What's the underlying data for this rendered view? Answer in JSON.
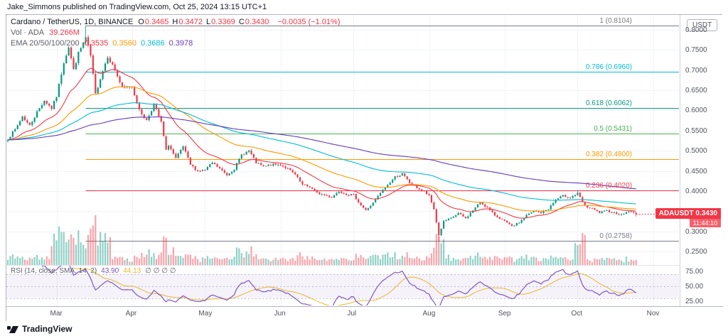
{
  "attribution": "Jake_Simmons published on TradingView.com, Oct 25, 2024 13:15 UTC+1",
  "header": {
    "symbol_title": "Cardano / TetherUS, 1D, BINANCE",
    "ohlc": [
      {
        "k": "O",
        "v": "0.3465"
      },
      {
        "k": "H",
        "v": "0.3472"
      },
      {
        "k": "L",
        "v": "0.3369"
      },
      {
        "k": "C",
        "v": "0.3430"
      }
    ],
    "change": "−0.0035 (−1.01%)",
    "volume_label": "Vol · ADA",
    "volume_value": "39.266M",
    "ema_label": "EMA 20/50/100/200",
    "ema_values": [
      {
        "value": "0.3535",
        "color": "#F23645"
      },
      {
        "value": "0.3560",
        "color": "#FF9800"
      },
      {
        "value": "0.3686",
        "color": "#00BCD4"
      },
      {
        "value": "0.3978",
        "color": "#673AB7"
      }
    ]
  },
  "rsi_legend": {
    "label": "RSI (14, close, SMA, 14, 2)",
    "rsi_value": "43.90",
    "ma_value": "44.13",
    "empties": "∅ ∅ ∅ ∅"
  },
  "price_scale": {
    "currency": "USDT",
    "ticks": [
      "0.8000",
      "0.7500",
      "0.7000",
      "0.6500",
      "0.6000",
      "0.5500",
      "0.5000",
      "0.4500",
      "0.4000",
      "0.3500",
      "0.3000",
      "0.2500"
    ]
  },
  "rsi_scale": [
    "75.00",
    "50.00",
    "25.00"
  ],
  "price_label": {
    "symbol": "ADAUSDT",
    "price": "0.3430",
    "countdown": "11:44:10",
    "level": 0.343,
    "color": "#F23645"
  },
  "fib_levels": [
    {
      "label": "1 (0.8104)",
      "price": 0.8104,
      "color": "#787B86"
    },
    {
      "label": "0.786 (0.6960)",
      "price": 0.696,
      "color": "#00BCD4"
    },
    {
      "label": "0.618 (0.6062)",
      "price": 0.6062,
      "color": "#089981"
    },
    {
      "label": "0.5 (0.5431)",
      "price": 0.5431,
      "color": "#4CAF50"
    },
    {
      "label": "0.382 (0.4800)",
      "price": 0.48,
      "color": "#FF9800"
    },
    {
      "label": "0.236 (0.4020)",
      "price": 0.402,
      "color": "#F23645"
    },
    {
      "label": "0 (0.2758)",
      "price": 0.2758,
      "color": "#787B86"
    }
  ],
  "time_axis": {
    "months": [
      {
        "label": "Mar",
        "day": 20
      },
      {
        "label": "Apr",
        "day": 51
      },
      {
        "label": "May",
        "day": 81
      },
      {
        "label": "Jun",
        "day": 112
      },
      {
        "label": "Jul",
        "day": 142
      },
      {
        "label": "Aug",
        "day": 173
      },
      {
        "label": "Sep",
        "day": 204
      },
      {
        "label": "Oct",
        "day": 234
      },
      {
        "label": "Nov",
        "day": 265
      }
    ]
  },
  "footer_logo": "TradingView",
  "chart_data": [
    {
      "type": "candlestick",
      "symbol": "ADAUSDT",
      "exchange": "BINANCE",
      "timeframe": "1D",
      "x_axis": "days from 2024-02-10",
      "visible_day_range": [
        0,
        275
      ],
      "price_range_shown": [
        0.25,
        0.8
      ],
      "up_color": "#089981",
      "down_color": "#F23645",
      "ema_periods": [
        20,
        50,
        100,
        200
      ],
      "anchors_close": [
        [
          0,
          0.53
        ],
        [
          3,
          0.552
        ],
        [
          6,
          0.585
        ],
        [
          9,
          0.562
        ],
        [
          12,
          0.596
        ],
        [
          15,
          0.625
        ],
        [
          18,
          0.605
        ],
        [
          20,
          0.635
        ],
        [
          23,
          0.72
        ],
        [
          25,
          0.758
        ],
        [
          27,
          0.7
        ],
        [
          29,
          0.742
        ],
        [
          32,
          0.78
        ],
        [
          34,
          0.735
        ],
        [
          36,
          0.64
        ],
        [
          38,
          0.68
        ],
        [
          41,
          0.735
        ],
        [
          44,
          0.7
        ],
        [
          47,
          0.655
        ],
        [
          51,
          0.66
        ],
        [
          54,
          0.6
        ],
        [
          57,
          0.575
        ],
        [
          60,
          0.615
        ],
        [
          63,
          0.57
        ],
        [
          65,
          0.5
        ],
        [
          66,
          0.515
        ],
        [
          69,
          0.48
        ],
        [
          72,
          0.51
        ],
        [
          75,
          0.465
        ],
        [
          78,
          0.45
        ],
        [
          81,
          0.452
        ],
        [
          84,
          0.47
        ],
        [
          87,
          0.455
        ],
        [
          90,
          0.44
        ],
        [
          93,
          0.455
        ],
        [
          96,
          0.49
        ],
        [
          99,
          0.5
        ],
        [
          102,
          0.47
        ],
        [
          105,
          0.46
        ],
        [
          108,
          0.465
        ],
        [
          112,
          0.465
        ],
        [
          115,
          0.455
        ],
        [
          118,
          0.44
        ],
        [
          121,
          0.415
        ],
        [
          124,
          0.41
        ],
        [
          127,
          0.395
        ],
        [
          130,
          0.39
        ],
        [
          133,
          0.385
        ],
        [
          136,
          0.4
        ],
        [
          139,
          0.392
        ],
        [
          142,
          0.39
        ],
        [
          145,
          0.365
        ],
        [
          147,
          0.352
        ],
        [
          150,
          0.37
        ],
        [
          153,
          0.395
        ],
        [
          156,
          0.415
        ],
        [
          159,
          0.435
        ],
        [
          162,
          0.442
        ],
        [
          165,
          0.42
        ],
        [
          168,
          0.408
        ],
        [
          171,
          0.398
        ],
        [
          173,
          0.388
        ],
        [
          175,
          0.355
        ],
        [
          177,
          0.29
        ],
        [
          179,
          0.325
        ],
        [
          182,
          0.332
        ],
        [
          185,
          0.345
        ],
        [
          188,
          0.332
        ],
        [
          191,
          0.352
        ],
        [
          194,
          0.372
        ],
        [
          197,
          0.358
        ],
        [
          200,
          0.34
        ],
        [
          204,
          0.325
        ],
        [
          207,
          0.312
        ],
        [
          210,
          0.322
        ],
        [
          213,
          0.34
        ],
        [
          216,
          0.35
        ],
        [
          219,
          0.346
        ],
        [
          222,
          0.356
        ],
        [
          225,
          0.378
        ],
        [
          228,
          0.388
        ],
        [
          231,
          0.384
        ],
        [
          234,
          0.394
        ],
        [
          237,
          0.362
        ],
        [
          240,
          0.356
        ],
        [
          243,
          0.346
        ],
        [
          246,
          0.351
        ],
        [
          249,
          0.346
        ],
        [
          252,
          0.341
        ],
        [
          255,
          0.35
        ],
        [
          258,
          0.343
        ]
      ],
      "last_candle": {
        "open": 0.3465,
        "high": 0.3472,
        "low": 0.3369,
        "close": 0.343
      },
      "forced_highs": [
        {
          "day": 32,
          "price": 0.8104
        },
        {
          "day": 234,
          "price": 0.402
        }
      ],
      "forced_lows": [
        {
          "day": 177,
          "price": 0.2758
        }
      ],
      "fib_anchor_day": 32
    },
    {
      "type": "bar",
      "name": "Volume ADA",
      "last_value": 39266000,
      "last_value_label": "39.266M",
      "up_color": "rgba(8,153,129,0.45)",
      "down_color": "rgba(242,54,69,0.45)",
      "spikes": [
        {
          "from": 18,
          "to": 42,
          "mult": 3.0
        },
        {
          "from": 55,
          "to": 58,
          "mult": 1.6
        },
        {
          "from": 63,
          "to": 68,
          "mult": 1.7
        },
        {
          "from": 94,
          "to": 100,
          "mult": 1.9
        },
        {
          "from": 119,
          "to": 125,
          "mult": 1.4
        },
        {
          "from": 154,
          "to": 164,
          "mult": 1.4
        },
        {
          "from": 175,
          "to": 181,
          "mult": 1.5
        },
        {
          "from": 193,
          "to": 196,
          "mult": 1.3
        },
        {
          "from": 233,
          "to": 237,
          "mult": 2.8
        }
      ]
    },
    {
      "type": "line",
      "name": "RSI",
      "period": 14,
      "source": "close",
      "smoothing": "SMA 14",
      "last": 43.9,
      "ma_last": 44.13,
      "scale_labels": [
        75,
        50,
        25
      ],
      "band": [
        30,
        70
      ],
      "line_color": "#7E57C2",
      "ma_color": "#E8B92E",
      "band_fill": "rgba(126,87,194,0.08)"
    }
  ]
}
